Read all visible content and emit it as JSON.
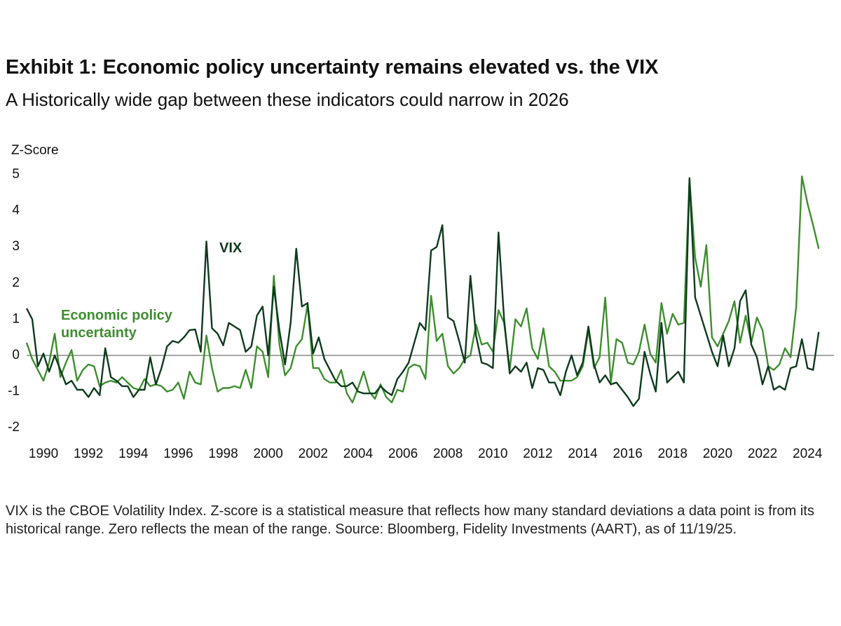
{
  "chart_data": {
    "type": "line",
    "title": "Exhibit 1: Economic policy uncertainty remains elevated vs. the VIX",
    "subtitle": "A Historically wide gap between these indicators could narrow in 2026",
    "ylabel": "Z-Score",
    "note": "VIX is the CBOE Volatility Index. Z-score is a statistical measure that reflects how many standard deviations a data point is from its historical range. Zero reflects the mean of the range. Source: Bloomberg, Fidelity Investments (AART), as of 11/19/25.",
    "xlim": [
      1989.25,
      2025.18
    ],
    "xticks": [
      1990,
      1992,
      1994,
      1996,
      1998,
      2000,
      2002,
      2004,
      2006,
      2008,
      2010,
      2012,
      2014,
      2016,
      2018,
      2020,
      2022,
      2024
    ],
    "ylim": [
      -2.3,
      5.3
    ],
    "yticks": [
      -2,
      -1,
      0,
      1,
      2,
      3,
      4,
      5
    ],
    "reference_line": 0,
    "grid": false,
    "x": [
      1989.25,
      1989.5,
      1989.75,
      1990,
      1990.25,
      1990.5,
      1990.75,
      1991,
      1991.25,
      1991.5,
      1991.75,
      1992,
      1992.25,
      1992.5,
      1992.75,
      1993,
      1993.25,
      1993.5,
      1993.75,
      1994,
      1994.25,
      1994.5,
      1994.75,
      1995,
      1995.25,
      1995.5,
      1995.75,
      1996,
      1996.25,
      1996.5,
      1996.75,
      1997,
      1997.25,
      1997.5,
      1997.75,
      1998,
      1998.25,
      1998.5,
      1998.75,
      1999,
      1999.25,
      1999.5,
      1999.75,
      2000,
      2000.25,
      2000.5,
      2000.75,
      2001,
      2001.25,
      2001.5,
      2001.75,
      2002,
      2002.25,
      2002.5,
      2002.75,
      2003,
      2003.25,
      2003.5,
      2003.75,
      2004,
      2004.25,
      2004.5,
      2004.75,
      2005,
      2005.25,
      2005.5,
      2005.75,
      2006,
      2006.25,
      2006.5,
      2006.75,
      2007,
      2007.25,
      2007.5,
      2007.75,
      2008,
      2008.25,
      2008.5,
      2008.75,
      2009,
      2009.25,
      2009.5,
      2009.75,
      2010,
      2010.25,
      2010.5,
      2010.75,
      2011,
      2011.25,
      2011.5,
      2011.75,
      2012,
      2012.25,
      2012.5,
      2012.75,
      2013,
      2013.25,
      2013.5,
      2013.75,
      2014,
      2014.25,
      2014.5,
      2014.75,
      2015,
      2015.25,
      2015.5,
      2015.75,
      2016,
      2016.25,
      2016.5,
      2016.75,
      2017,
      2017.25,
      2017.5,
      2017.75,
      2018,
      2018.25,
      2018.5,
      2018.75,
      2019,
      2019.25,
      2019.5,
      2019.75,
      2020,
      2020.25,
      2020.5,
      2020.75,
      2021,
      2021.25,
      2021.5,
      2021.75,
      2022,
      2022.25,
      2022.5,
      2022.75,
      2023,
      2023.25,
      2023.5,
      2023.75,
      2024,
      2024.25,
      2024.5
    ],
    "series": [
      {
        "name": "VIX",
        "color": "#0d3b1c",
        "values": [
          1.3,
          1.0,
          -0.3,
          0.05,
          -0.45,
          0,
          -0.4,
          -0.8,
          -0.7,
          -0.95,
          -0.95,
          -1.15,
          -0.9,
          -1.1,
          0.2,
          -0.6,
          -0.7,
          -0.85,
          -0.85,
          -1.15,
          -0.95,
          -0.95,
          -0.05,
          -0.8,
          -0.35,
          0.25,
          0.4,
          0.35,
          0.5,
          0.7,
          0.72,
          0.1,
          3.15,
          0.75,
          0.6,
          0.28,
          0.9,
          0.8,
          0.7,
          0.1,
          0.25,
          1.1,
          1.35,
          0.0,
          1.9,
          0.7,
          -0.25,
          0.9,
          2.95,
          1.35,
          1.45,
          0.05,
          0.5,
          -0.1,
          -0.4,
          -0.7,
          -0.85,
          -0.85,
          -0.75,
          -1.0,
          -1.05,
          -1.05,
          -1.05,
          -0.85,
          -1.0,
          -1.1,
          -0.65,
          -0.45,
          -0.2,
          0.35,
          0.9,
          0.7,
          2.9,
          3.0,
          3.6,
          1.05,
          0.95,
          0.4,
          -0.2,
          2.2,
          0.55,
          -0.2,
          -0.25,
          -0.35,
          3.4,
          1.0,
          -0.5,
          -0.3,
          -0.45,
          -0.2,
          -0.9,
          -0.35,
          -0.4,
          -0.75,
          -0.75,
          -1.1,
          -0.45,
          0.0,
          -0.55,
          -0.2,
          0.8,
          -0.25,
          -0.75,
          -0.55,
          -0.8,
          -0.75,
          -0.95,
          -1.15,
          -1.4,
          -1.2,
          0.1,
          -0.5,
          -1.0,
          0.9,
          -0.75,
          -0.6,
          -0.45,
          -0.75,
          4.9,
          1.6,
          1.1,
          0.6,
          0.1,
          -0.3,
          0.55,
          -0.3,
          0.2,
          1.5,
          1.8,
          0.3,
          -0.05,
          -0.8,
          -0.3,
          -0.95,
          -0.85,
          -0.95,
          -0.35,
          -0.3,
          0.45,
          -0.35,
          -0.4,
          0.65
        ]
      },
      {
        "name": "Economic policy uncertainty",
        "color": "#3e8e2f",
        "values": [
          0.35,
          -0.1,
          -0.4,
          -0.7,
          -0.2,
          0.6,
          -0.6,
          -0.2,
          0.15,
          -0.7,
          -0.4,
          -0.25,
          -0.3,
          -0.85,
          -0.75,
          -0.7,
          -0.75,
          -0.6,
          -0.75,
          -0.9,
          -0.95,
          -0.65,
          -0.85,
          -0.8,
          -0.85,
          -1.0,
          -0.95,
          -0.75,
          -1.2,
          -0.45,
          -0.75,
          -0.8,
          0.55,
          -0.35,
          -1.0,
          -0.9,
          -0.9,
          -0.85,
          -0.9,
          -0.4,
          -0.9,
          0.25,
          0.1,
          -0.6,
          2.2,
          0.3,
          -0.55,
          -0.35,
          0.25,
          0.45,
          1.4,
          -0.35,
          -0.35,
          -0.65,
          -0.75,
          -0.75,
          -0.4,
          -1.05,
          -1.3,
          -0.9,
          -0.45,
          -1.0,
          -1.2,
          -0.8,
          -1.15,
          -1.3,
          -0.95,
          -1.0,
          -0.35,
          -0.25,
          -0.3,
          -0.65,
          1.65,
          0.4,
          0.6,
          -0.3,
          -0.5,
          -0.35,
          -0.1,
          0.0,
          0.85,
          0.3,
          0.35,
          0.1,
          1.25,
          0.9,
          -0.4,
          1.0,
          0.8,
          1.3,
          0.2,
          -0.1,
          0.75,
          -0.3,
          -0.45,
          -0.7,
          -0.7,
          -0.7,
          -0.6,
          -0.3,
          0.7,
          -0.35,
          -0.05,
          1.6,
          -0.75,
          0.45,
          0.35,
          -0.2,
          -0.25,
          0.1,
          0.85,
          0.05,
          -0.2,
          1.45,
          0.6,
          1.15,
          0.85,
          0.9,
          4.85,
          2.7,
          1.9,
          3.05,
          0.5,
          0.25,
          0.6,
          0.95,
          1.5,
          0.35,
          1.1,
          0.35,
          1.05,
          0.7,
          -0.3,
          -0.4,
          -0.25,
          0.2,
          -0.05,
          1.35,
          4.95,
          4.2,
          3.6,
          2.95
        ]
      }
    ]
  }
}
